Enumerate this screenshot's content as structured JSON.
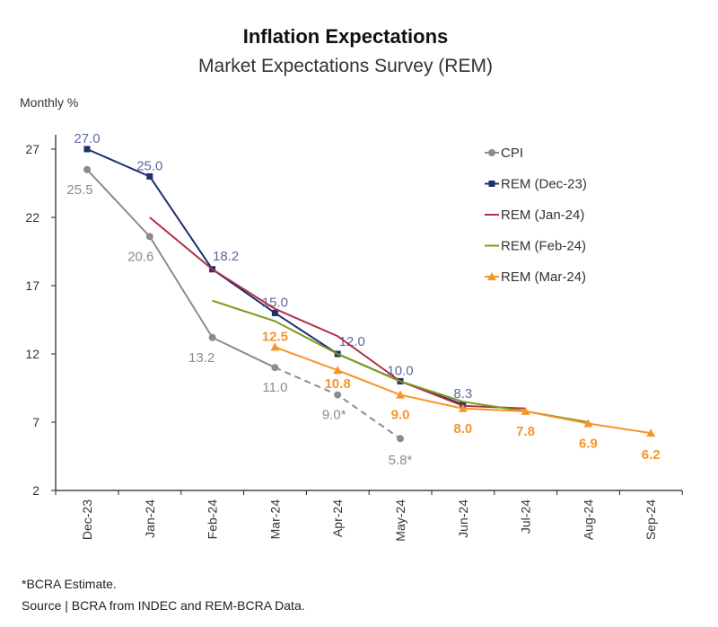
{
  "chart_data": {
    "type": "line",
    "title": "Inflation Expectations",
    "subtitle": "Market Expectations Survey (REM)",
    "ylabel": "Monthly %",
    "xlabel": "",
    "ylim": [
      2,
      29
    ],
    "yticks": [
      2,
      7,
      12,
      17,
      22,
      27
    ],
    "categories": [
      "Dec-23",
      "Jan-24",
      "Feb-24",
      "Mar-24",
      "Apr-24",
      "May-24",
      "Jun-24",
      "Jul-24",
      "Aug-24",
      "Sep-24"
    ],
    "legend_position": "top-right",
    "grid": false,
    "series": [
      {
        "name": "CPI",
        "color": "#8c8c8c",
        "marker": "circle",
        "values": [
          25.5,
          20.6,
          13.2,
          11.0,
          9.0,
          5.8,
          null,
          null,
          null,
          null
        ],
        "labels": [
          "25.5",
          "20.6",
          "13.2",
          "11.0",
          "9.0*",
          "5.8*",
          null,
          null,
          null,
          null
        ],
        "dashed_from": 3
      },
      {
        "name": "REM (Dec-23)",
        "color": "#1f2f6b",
        "label_color": "#5a6aa0",
        "marker": "square",
        "values": [
          27.0,
          25.0,
          18.2,
          15.0,
          12.0,
          10.0,
          8.3,
          null,
          null,
          null
        ],
        "labels": [
          "27.0",
          "25.0",
          "18.2",
          "15.0",
          "12.0",
          "10.0",
          "8.3",
          null,
          null,
          null
        ]
      },
      {
        "name": "REM (Jan-24)",
        "color": "#b0304a",
        "marker": "none",
        "values": [
          null,
          22.0,
          18.2,
          15.3,
          13.3,
          10.0,
          8.2,
          8.0,
          null,
          null
        ]
      },
      {
        "name": "REM (Feb-24)",
        "color": "#7a9a1a",
        "marker": "none",
        "values": [
          null,
          null,
          15.9,
          14.4,
          12.0,
          10.0,
          8.5,
          7.8,
          7.0,
          null
        ]
      },
      {
        "name": "REM (Mar-24)",
        "color": "#f5962a",
        "marker": "triangle",
        "values": [
          null,
          null,
          null,
          12.5,
          10.8,
          9.0,
          8.0,
          7.8,
          6.9,
          6.2
        ],
        "labels": [
          null,
          null,
          null,
          "12.5",
          "10.8",
          "9.0",
          "8.0",
          "7.8",
          "6.9",
          "6.2"
        ]
      }
    ]
  },
  "notes": [
    "*BCRA Estimate.",
    "Source | BCRA from INDEC and REM-BCRA Data."
  ]
}
